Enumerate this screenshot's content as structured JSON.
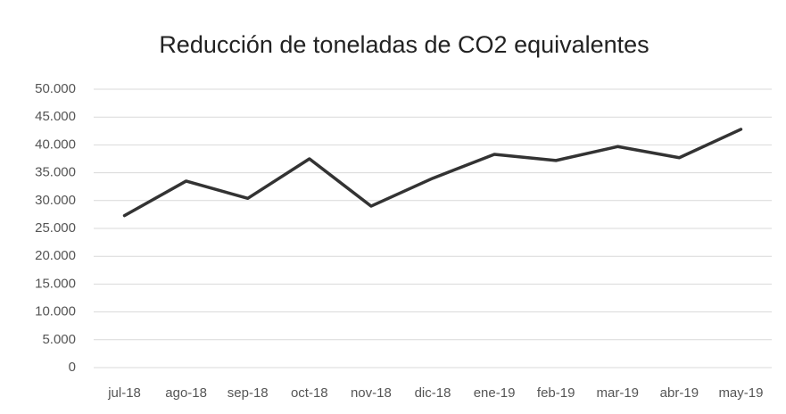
{
  "chart_data": {
    "type": "line",
    "title": "Reducción de toneladas de CO2 equivalentes",
    "categories": [
      "jul-18",
      "ago-18",
      "sep-18",
      "oct-18",
      "nov-18",
      "dic-18",
      "ene-19",
      "feb-19",
      "mar-19",
      "abr-19",
      "may-19"
    ],
    "series": [
      {
        "name": "Reducción de toneladas de CO2 equivalentes",
        "color": "#333333",
        "values": [
          27300,
          33500,
          30400,
          37500,
          29000,
          34000,
          38300,
          37200,
          39700,
          37700,
          42800
        ]
      }
    ],
    "ylim": [
      0,
      50000
    ],
    "yticks": [
      0,
      {
        "value": 5000,
        "label": "5.000"
      },
      {
        "value": 10000,
        "label": "10.000"
      },
      {
        "value": 15000,
        "label": "15.000"
      },
      {
        "value": 20000,
        "label": "20.000"
      },
      {
        "value": 25000,
        "label": "25.000"
      },
      {
        "value": 30000,
        "label": "30.000"
      },
      {
        "value": 35000,
        "label": "35.000"
      },
      {
        "value": 40000,
        "label": "40.000"
      },
      {
        "value": 45000,
        "label": "45.000"
      },
      {
        "value": 50000,
        "label": "50.000"
      }
    ],
    "grid": true
  }
}
